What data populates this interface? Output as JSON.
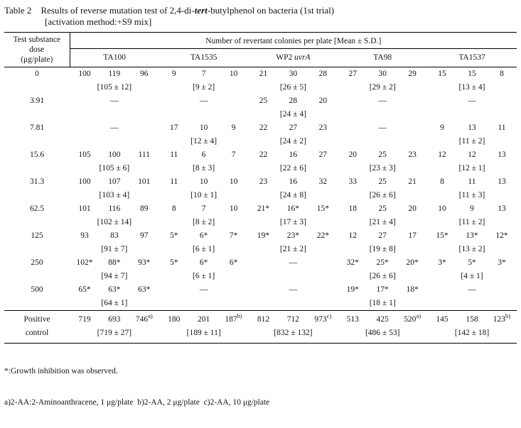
{
  "title": {
    "label": "Table 2",
    "caption": "Results of reverse mutation test of 2,4-di-_tert_-butylphenol on bacteria (1st trial)",
    "caption_line2": "[activation method:+S9 mix]"
  },
  "table": {
    "dose_header": [
      "Test substance",
      "dose",
      "(μg/plate)"
    ],
    "span_header": "Number of revertant colonies per plate [Mean ± S.D.]",
    "strains": [
      "TA100",
      "TA1535",
      "WP2 _uvrA_",
      "TA98",
      "TA1537"
    ],
    "no_data_symbol": "—",
    "rows": [
      {
        "dose": "0",
        "cells": [
          {
            "v": [
              "100",
              "119",
              "96"
            ],
            "m": "[105 ± 12]"
          },
          {
            "v": [
              "9",
              "7",
              "10"
            ],
            "m": "[9 ± 2]"
          },
          {
            "v": [
              "21",
              "30",
              "28"
            ],
            "m": "[26 ± 5]"
          },
          {
            "v": [
              "27",
              "30",
              "29"
            ],
            "m": "[29 ± 2]"
          },
          {
            "v": [
              "15",
              "15",
              "8"
            ],
            "m": "[13 ± 4]"
          }
        ]
      },
      {
        "dose": "3.91",
        "cells": [
          {
            "dash": true
          },
          {
            "dash": true
          },
          {
            "v": [
              "25",
              "28",
              "20"
            ],
            "m": "[24 ± 4]"
          },
          {
            "dash": true
          },
          {
            "dash": true
          }
        ]
      },
      {
        "dose": "7.81",
        "cells": [
          {
            "dash": true
          },
          {
            "v": [
              "17",
              "10",
              "9"
            ],
            "m": "[12 ± 4]"
          },
          {
            "v": [
              "22",
              "27",
              "23"
            ],
            "m": "[24 ± 2]"
          },
          {
            "dash": true
          },
          {
            "v": [
              "9",
              "13",
              "11"
            ],
            "m": "[11 ± 2]"
          }
        ]
      },
      {
        "dose": "15.6",
        "cells": [
          {
            "v": [
              "105",
              "100",
              "111"
            ],
            "m": "[105 ± 6]"
          },
          {
            "v": [
              "11",
              "6",
              "7"
            ],
            "m": "[8 ± 3]"
          },
          {
            "v": [
              "22",
              "16",
              "27"
            ],
            "m": "[22 ± 6]"
          },
          {
            "v": [
              "20",
              "25",
              "23"
            ],
            "m": "[23 ± 3]"
          },
          {
            "v": [
              "12",
              "12",
              "13"
            ],
            "m": "[12 ± 1]"
          }
        ]
      },
      {
        "dose": "31.3",
        "cells": [
          {
            "v": [
              "100",
              "107",
              "101"
            ],
            "m": "[103 ± 4]"
          },
          {
            "v": [
              "11",
              "10",
              "10"
            ],
            "m": "[10 ± 1]"
          },
          {
            "v": [
              "23",
              "16",
              "32"
            ],
            "m": "[24 ± 8]"
          },
          {
            "v": [
              "33",
              "25",
              "21"
            ],
            "m": "[26 ± 6]"
          },
          {
            "v": [
              "8",
              "11",
              "13"
            ],
            "m": "[11 ± 3]"
          }
        ]
      },
      {
        "dose": "62.5",
        "cells": [
          {
            "v": [
              "101",
              "116",
              "89"
            ],
            "m": "[102 ± 14]"
          },
          {
            "v": [
              "8",
              "7",
              "10"
            ],
            "m": "[8 ± 2]"
          },
          {
            "v": [
              "21*",
              "16*",
              "15*"
            ],
            "m": "[17 ± 3]"
          },
          {
            "v": [
              "18",
              "25",
              "20"
            ],
            "m": "[21 ± 4]"
          },
          {
            "v": [
              "10",
              "9",
              "13"
            ],
            "m": "[11 ± 2]"
          }
        ]
      },
      {
        "dose": "125",
        "cells": [
          {
            "v": [
              "93",
              "83",
              "97"
            ],
            "m": "[91 ± 7]"
          },
          {
            "v": [
              "5*",
              "6*",
              "7*"
            ],
            "m": "[6 ± 1]"
          },
          {
            "v": [
              "19*",
              "23*",
              "22*"
            ],
            "m": "[21 ± 2]"
          },
          {
            "v": [
              "12",
              "27",
              "17"
            ],
            "m": "[19 ± 8]"
          },
          {
            "v": [
              "15*",
              "13*",
              "12*"
            ],
            "m": "[13 ± 2]"
          }
        ]
      },
      {
        "dose": "250",
        "cells": [
          {
            "v": [
              "102*",
              "88*",
              "93*"
            ],
            "m": "[94 ± 7]"
          },
          {
            "v": [
              "5*",
              "6*",
              "6*"
            ],
            "m": "[6 ± 1]"
          },
          {
            "dash": true
          },
          {
            "v": [
              "32*",
              "25*",
              "20*"
            ],
            "m": "[26 ± 6]"
          },
          {
            "v": [
              "3*",
              "5*",
              "3*"
            ],
            "m": "[4 ± 1]"
          }
        ]
      },
      {
        "dose": "500",
        "cells": [
          {
            "v": [
              "65*",
              "63*",
              "63*"
            ],
            "m": "[64 ± 1]"
          },
          {
            "dash": true
          },
          {
            "dash": true
          },
          {
            "v": [
              "19*",
              "17*",
              "18*"
            ],
            "m": "[18 ± 1]"
          },
          {
            "dash": true
          }
        ]
      }
    ],
    "positive_control": {
      "dose": [
        "Positive",
        "control"
      ],
      "cells": [
        {
          "v": [
            "719",
            "693",
            "746^a)"
          ],
          "m": "[719 ± 27]"
        },
        {
          "v": [
            "180",
            "201",
            "187^b)"
          ],
          "m": "[189 ± 11]"
        },
        {
          "v": [
            "812",
            "712",
            "973^c)"
          ],
          "m": "[832 ± 132]"
        },
        {
          "v": [
            "513",
            "425",
            "520^a)"
          ],
          "m": "[486 ± 53]"
        },
        {
          "v": [
            "145",
            "158",
            "123^b)"
          ],
          "m": "[142 ± 18]"
        }
      ]
    }
  },
  "footnotes": [
    "*:Growth inhibition was observed.",
    "a)2-AA:2-Aminoanthracene, 1 μg/plate  b)2-AA, 2 μg/plate  c)2-AA, 10 μg/plate"
  ]
}
